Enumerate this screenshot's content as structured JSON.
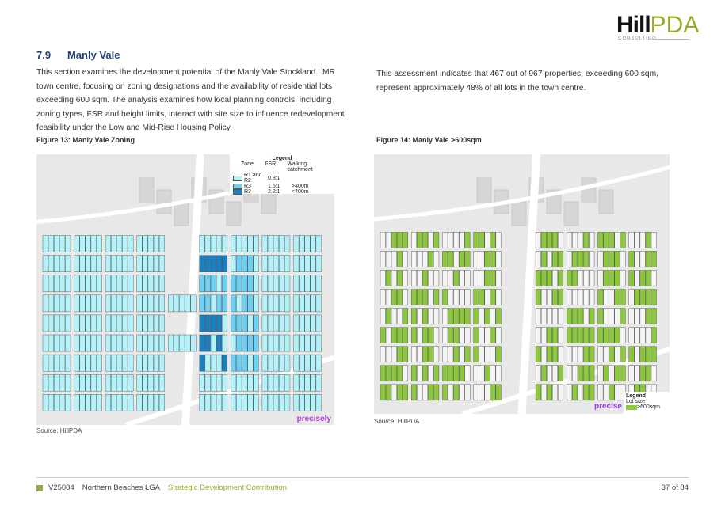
{
  "logo": {
    "text_bold": "Hill",
    "text_light": "PDA",
    "sub": "CONSULTING"
  },
  "section": {
    "number": "7.9",
    "title": "Manly Vale"
  },
  "paragraphs": [
    "This section examines the development potential of the Manly Vale Stockland LMR town centre, focusing on zoning designations and the availability of residential lots exceeding 600 sqm. The analysis examines how local planning controls, including zoning types, FSR and height limits, interact with site size to influence redevelopment feasibility under the Low and Mid-Rise Housing Policy.",
    "This assessment indicates that 467 out of 967 properties, exceeding 600 sqm, represent approximately 48% of all lots in the town centre."
  ],
  "figures": [
    {
      "caption": "Figure 13: Manly Vale Zoning",
      "source": "Source: HillPDA",
      "legend": {
        "title": "Legend",
        "headers": [
          "Zone",
          "FSR",
          "Walking catchment"
        ],
        "rows": [
          {
            "zone": "R1 and R2",
            "fsr": "0.8:1",
            "catchment": "",
            "color": "#b4f2fa"
          },
          {
            "zone": "R3",
            "fsr": "1.5:1",
            "catchment": ">400m",
            "color": "#6fd0f2"
          },
          {
            "zone": "R3",
            "fsr": "2.2:1",
            "catchment": "<400m",
            "color": "#1b7fc0"
          }
        ]
      },
      "watermark": "precisely"
    },
    {
      "caption": "Figure 14: Manly Vale >600sqm",
      "source": "Source: HillPDA",
      "legend": {
        "title": "Legend",
        "subtitle": "Lot size",
        "rows": [
          {
            "label": ">600sqm",
            "color": "#8dc63f"
          }
        ]
      },
      "watermark": "precise"
    }
  ],
  "footer": {
    "code": "V25084",
    "client": "Northern Beaches LGA",
    "project": "Strategic Development Contribution",
    "page": "37 of 84"
  }
}
